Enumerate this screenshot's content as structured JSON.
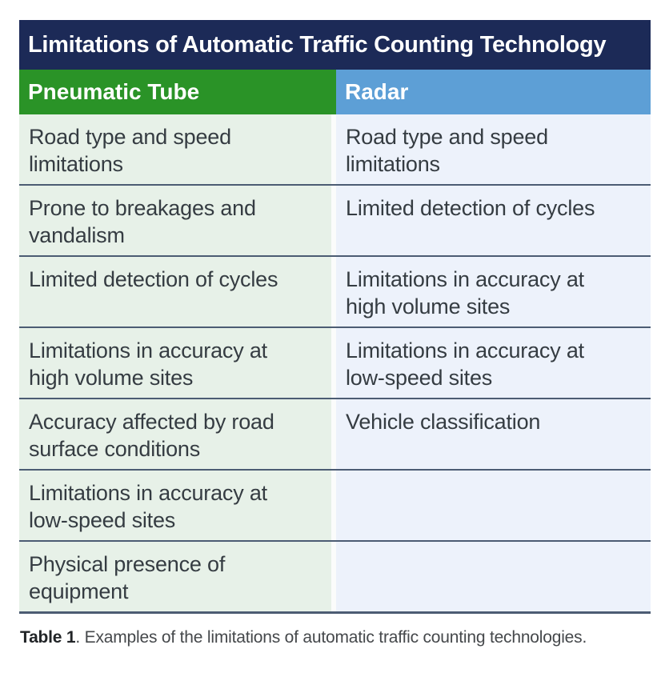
{
  "table": {
    "title": "Limitations of Automatic Traffic Counting Technology",
    "columns": [
      {
        "label": "Pneumatic Tube",
        "color": "#2a9327"
      },
      {
        "label": "Radar",
        "color": "#5d9fd6"
      }
    ],
    "rows": [
      {
        "pneumatic_tube": "Road type and speed limitations",
        "radar": "Road type and speed limitations"
      },
      {
        "pneumatic_tube": "Prone to breakages and vandalism",
        "radar": "Limited detection of cycles"
      },
      {
        "pneumatic_tube": "Limited detection of cycles",
        "radar": "Limitations in accuracy at high volume sites"
      },
      {
        "pneumatic_tube": "Limitations in accuracy at high volume sites",
        "radar": "Limitations in accuracy at low-speed sites"
      },
      {
        "pneumatic_tube": "Accuracy affected by road surface conditions",
        "radar": "Vehicle classification"
      },
      {
        "pneumatic_tube": "Limitations in accuracy at low-speed sites",
        "radar": ""
      },
      {
        "pneumatic_tube": "Physical presence of equipment",
        "radar": ""
      }
    ]
  },
  "caption": {
    "label": "Table 1",
    "text": ". Examples of the limitations of automatic traffic counting technologies."
  },
  "colors": {
    "navy": "#1c2a57",
    "green": "#2a9327",
    "blue": "#5d9fd6",
    "pale_green": "#e7f1e8",
    "pale_blue": "#edf2fb",
    "divider": "#4c5c73",
    "text": "#353c42"
  }
}
